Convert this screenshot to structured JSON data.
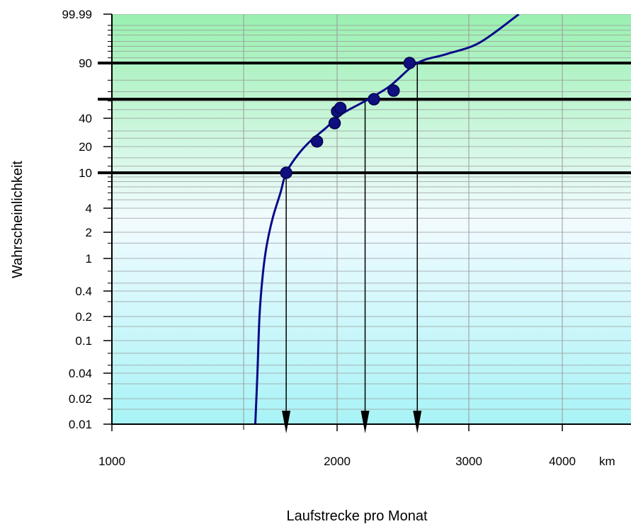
{
  "chart_data": {
    "type": "scatter",
    "title": "",
    "xlabel": "Laufstrecke pro Monat",
    "ylabel": "Wahrscheinlichkeit",
    "x_scale": "log",
    "y_scale": "probability",
    "xlim": [
      1000,
      5000
    ],
    "ylim": [
      0.01,
      99.99
    ],
    "x_ticks": [
      {
        "value": 1000,
        "label": "1000"
      },
      {
        "value": 2000,
        "label": "2000"
      },
      {
        "value": 3000,
        "label": "3000"
      },
      {
        "value": 4000,
        "label": "4000"
      }
    ],
    "x_unit": "km",
    "y_ticks": [
      {
        "value": 99.99,
        "label": "99.99"
      },
      {
        "value": 90,
        "label": "90"
      },
      {
        "value": 40,
        "label": "40"
      },
      {
        "value": 20,
        "label": "20"
      },
      {
        "value": 10,
        "label": "10"
      },
      {
        "value": 4,
        "label": "4"
      },
      {
        "value": 2,
        "label": "2"
      },
      {
        "value": 1,
        "label": "1"
      },
      {
        "value": 0.4,
        "label": "0.4"
      },
      {
        "value": 0.2,
        "label": "0.2"
      },
      {
        "value": 0.1,
        "label": "0.1"
      },
      {
        "value": 0.04,
        "label": "0.04"
      },
      {
        "value": 0.02,
        "label": "0.02"
      },
      {
        "value": 0.01,
        "label": "0.01"
      }
    ],
    "points": [
      {
        "x": 1710,
        "y": 10
      },
      {
        "x": 1880,
        "y": 23
      },
      {
        "x": 1985,
        "y": 36
      },
      {
        "x": 2000,
        "y": 48
      },
      {
        "x": 2020,
        "y": 52
      },
      {
        "x": 2240,
        "y": 62
      },
      {
        "x": 2380,
        "y": 71
      },
      {
        "x": 2500,
        "y": 90
      }
    ],
    "fit_curve": [
      {
        "x": 1555,
        "y": 0.01
      },
      {
        "x": 1565,
        "y": 0.04
      },
      {
        "x": 1575,
        "y": 0.2
      },
      {
        "x": 1590,
        "y": 0.6
      },
      {
        "x": 1610,
        "y": 1.4
      },
      {
        "x": 1640,
        "y": 3
      },
      {
        "x": 1680,
        "y": 6
      },
      {
        "x": 1710,
        "y": 10
      },
      {
        "x": 1770,
        "y": 16
      },
      {
        "x": 1840,
        "y": 23
      },
      {
        "x": 1930,
        "y": 32
      },
      {
        "x": 2030,
        "y": 45
      },
      {
        "x": 2180,
        "y": 60
      },
      {
        "x": 2350,
        "y": 75
      },
      {
        "x": 2560,
        "y": 90
      },
      {
        "x": 2800,
        "y": 97
      },
      {
        "x": 3100,
        "y": 99.4
      },
      {
        "x": 3500,
        "y": 99.99
      }
    ],
    "reference_lines_y": [
      10,
      62,
      90
    ],
    "reference_arrows_x": [
      1710,
      2180,
      2560
    ],
    "grid": true,
    "colors": {
      "series": "#0a0a8a",
      "marker": "#0f0f80",
      "background_top": "#9af0b0",
      "background_mid": "#f2fbff",
      "background_bottom": "#a8f3f6",
      "reference": "#000000",
      "grid": "#999999"
    }
  }
}
